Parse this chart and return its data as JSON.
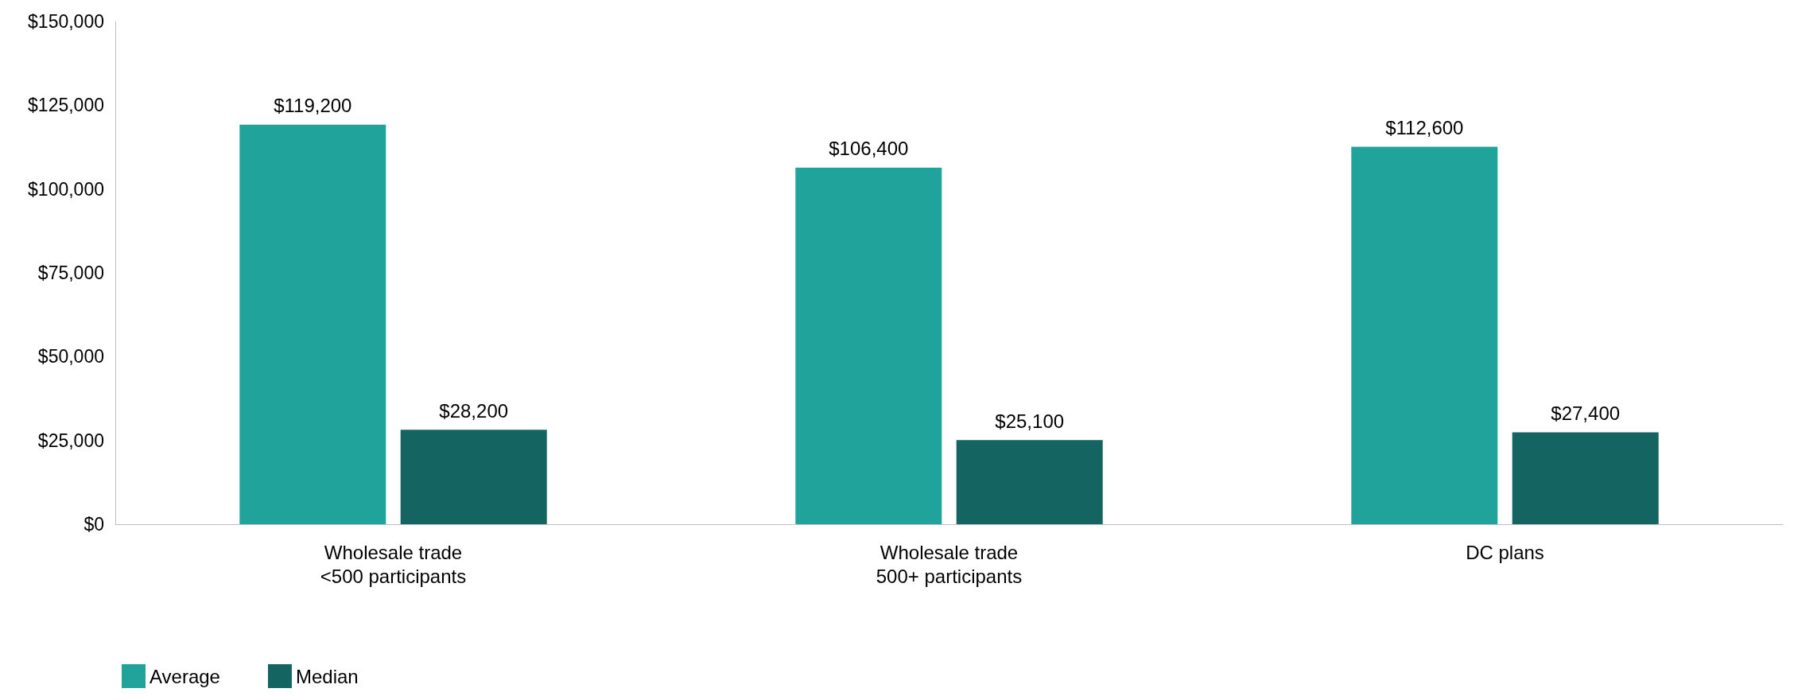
{
  "chart_data": {
    "type": "bar",
    "categories": [
      "Wholesale trade\n<500 participants",
      "Wholesale trade\n500+ participants",
      "DC plans"
    ],
    "series": [
      {
        "name": "Average",
        "color": "#1fa39b",
        "values": [
          119200,
          106400,
          112600
        ],
        "value_labels": [
          "$119,200",
          "$106,400",
          "$112,600"
        ]
      },
      {
        "name": "Median",
        "color": "#146461",
        "values": [
          28200,
          25100,
          27400
        ],
        "value_labels": [
          "$28,200",
          "$25,100",
          "$27,400"
        ]
      }
    ],
    "ylim": [
      0,
      150000
    ],
    "yticks": [
      {
        "value": 0,
        "label": "$0"
      },
      {
        "value": 25000,
        "label": "$25,000"
      },
      {
        "value": 50000,
        "label": "$50,000"
      },
      {
        "value": 75000,
        "label": "$75,000"
      },
      {
        "value": 100000,
        "label": "$100,000"
      },
      {
        "value": 125000,
        "label": "$125,000"
      },
      {
        "value": 150000,
        "label": "$150,000"
      }
    ],
    "grid": false,
    "legend": "bottom left"
  }
}
